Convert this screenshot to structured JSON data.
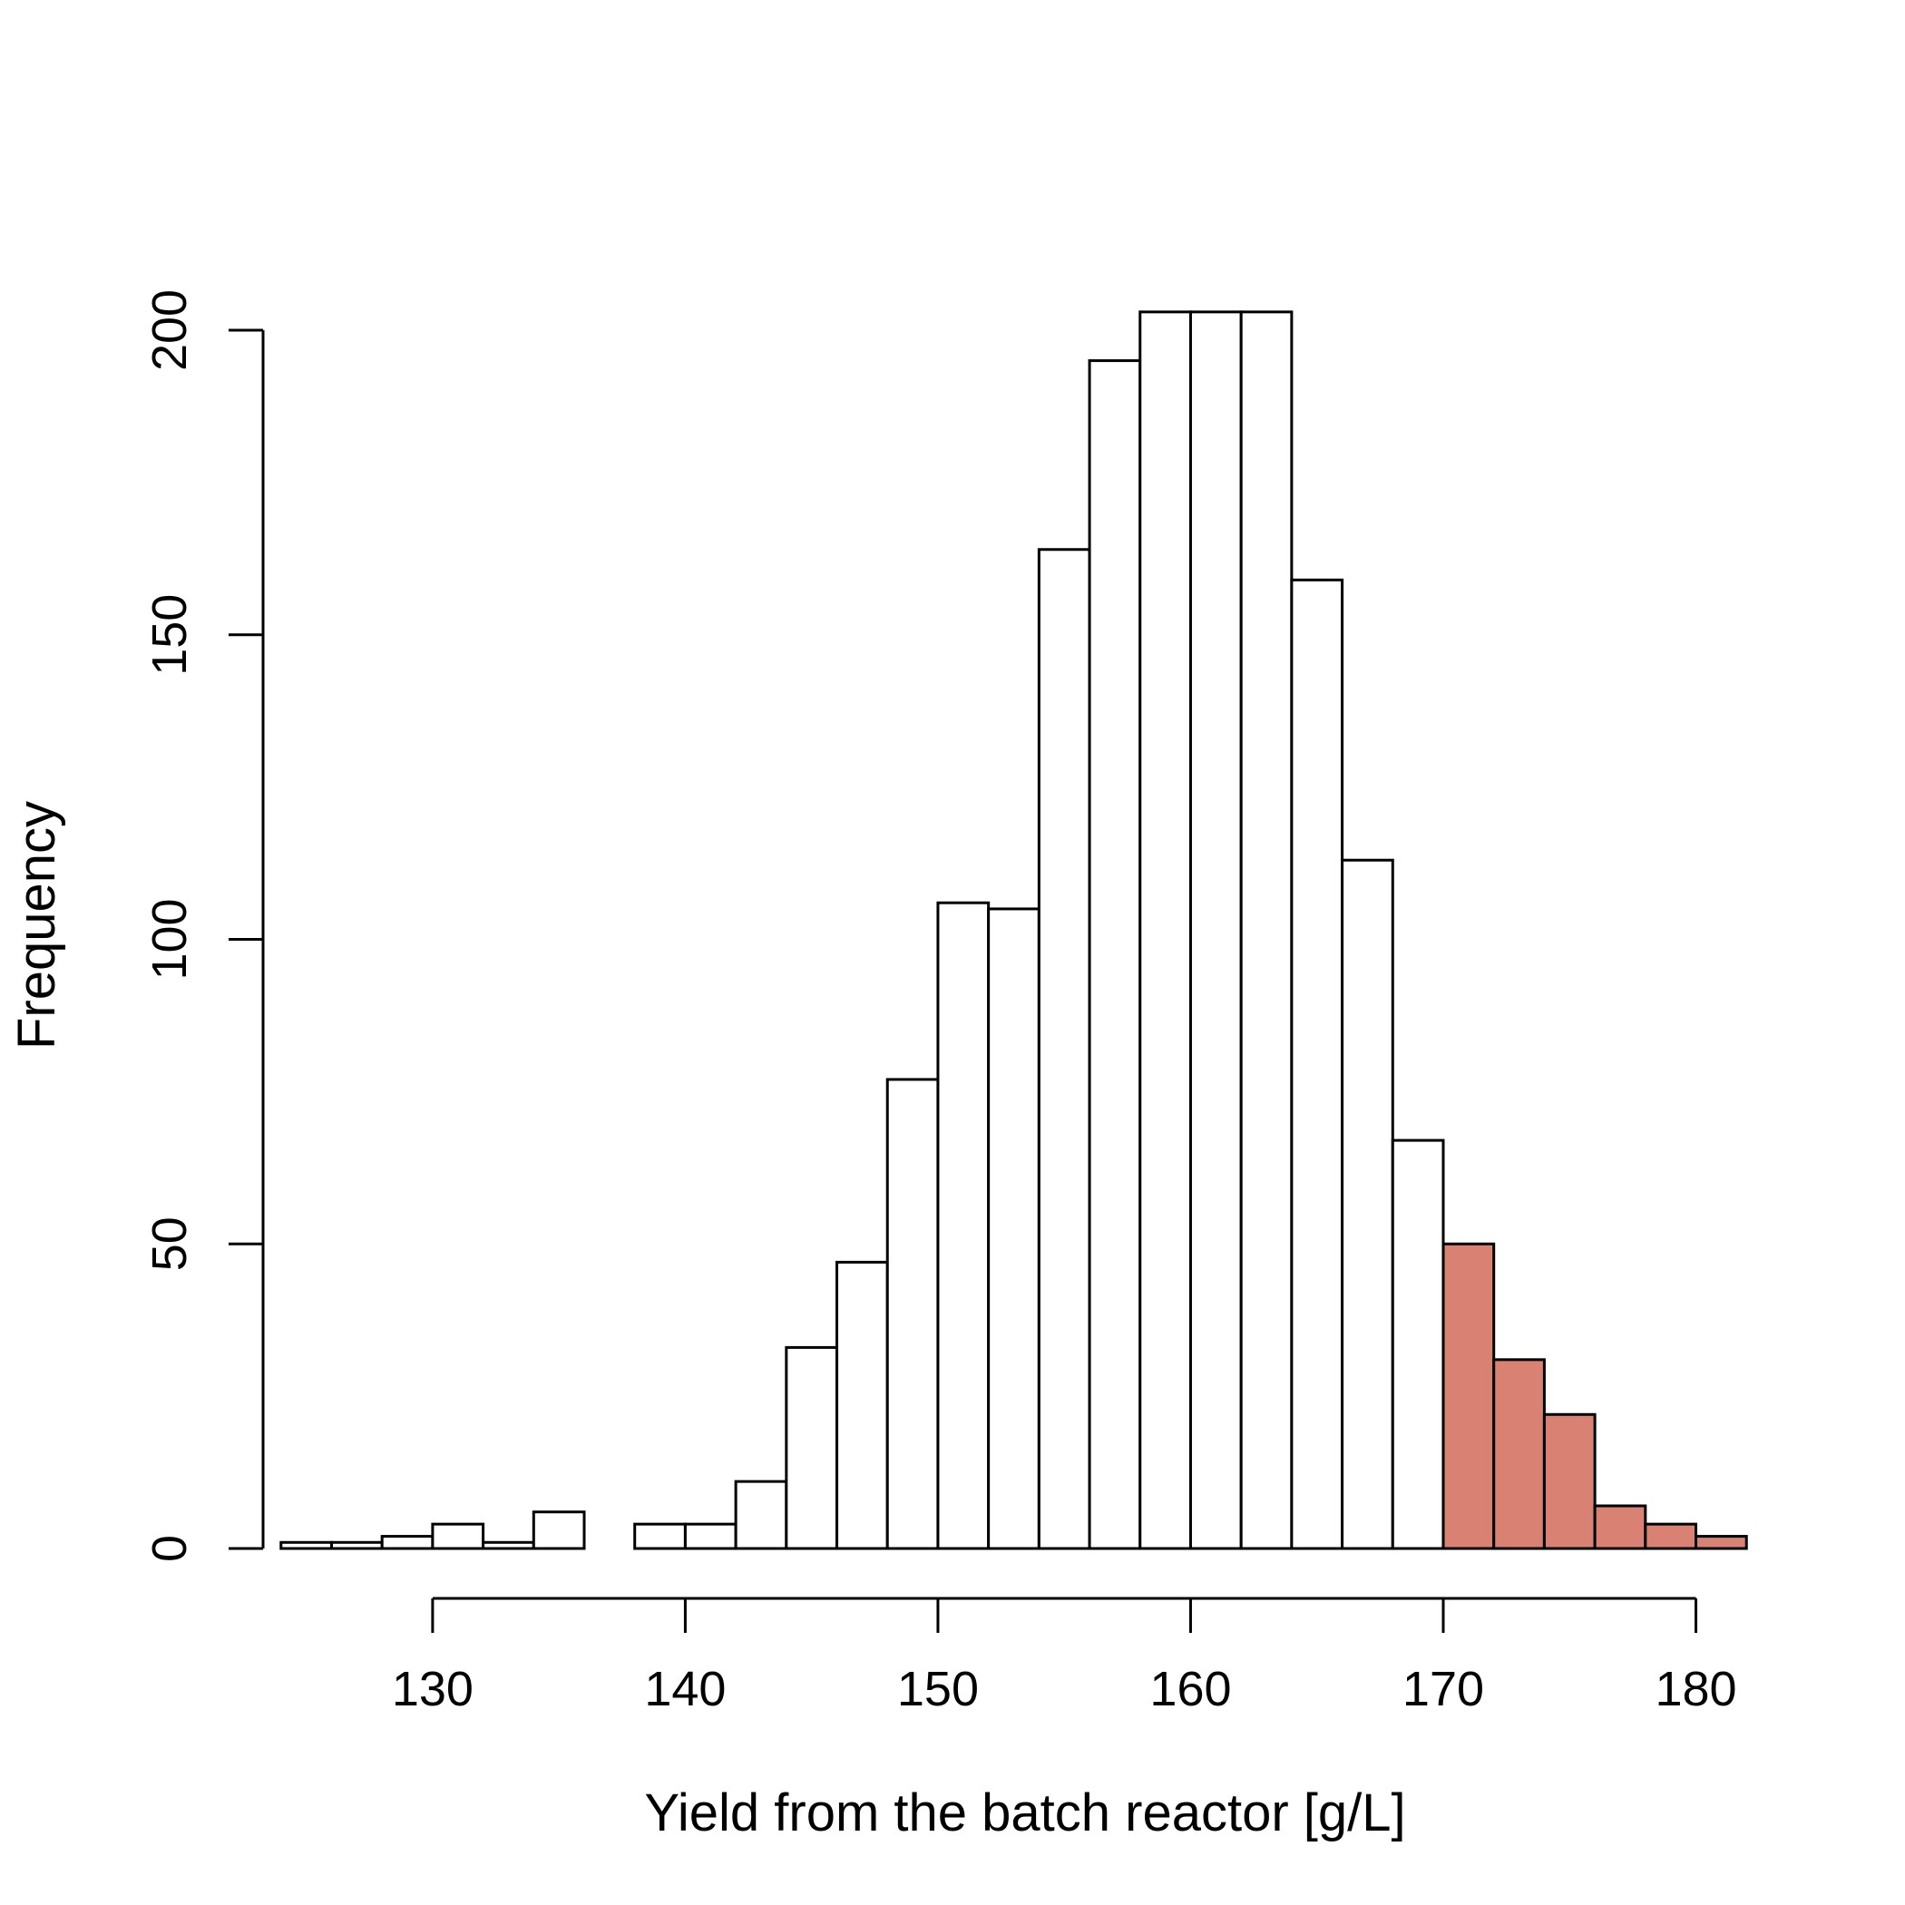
{
  "chart_data": {
    "type": "bar",
    "subtype": "histogram",
    "xlabel": "Yield from the batch reactor [g/L]",
    "ylabel": "Frequency",
    "xlim": [
      122.5,
      183.5
    ],
    "ylim": [
      0,
      210
    ],
    "xticks": [
      130,
      140,
      150,
      160,
      170,
      180
    ],
    "yticks": [
      0,
      50,
      100,
      150,
      200
    ],
    "bin_width": 2,
    "highlight_from": 170,
    "colors": {
      "default": "#ffffff",
      "highlight": "#d98273"
    },
    "bins": [
      {
        "x0": 124,
        "count": 1
      },
      {
        "x0": 126,
        "count": 1
      },
      {
        "x0": 128,
        "count": 2
      },
      {
        "x0": 130,
        "count": 4
      },
      {
        "x0": 132,
        "count": 1
      },
      {
        "x0": 134,
        "count": 6
      },
      {
        "x0": 136,
        "count": 0
      },
      {
        "x0": 138,
        "count": 4
      },
      {
        "x0": 140,
        "count": 4
      },
      {
        "x0": 142,
        "count": 11
      },
      {
        "x0": 144,
        "count": 33
      },
      {
        "x0": 146,
        "count": 47
      },
      {
        "x0": 148,
        "count": 77
      },
      {
        "x0": 150,
        "count": 106
      },
      {
        "x0": 152,
        "count": 105
      },
      {
        "x0": 154,
        "count": 164
      },
      {
        "x0": 156,
        "count": 195
      },
      {
        "x0": 158,
        "count": 203
      },
      {
        "x0": 160,
        "count": 203
      },
      {
        "x0": 162,
        "count": 203
      },
      {
        "x0": 164,
        "count": 159
      },
      {
        "x0": 166,
        "count": 113
      },
      {
        "x0": 168,
        "count": 67
      },
      {
        "x0": 170,
        "count": 50
      },
      {
        "x0": 172,
        "count": 31
      },
      {
        "x0": 174,
        "count": 22
      },
      {
        "x0": 176,
        "count": 7
      },
      {
        "x0": 178,
        "count": 4
      },
      {
        "x0": 180,
        "count": 2
      }
    ]
  }
}
